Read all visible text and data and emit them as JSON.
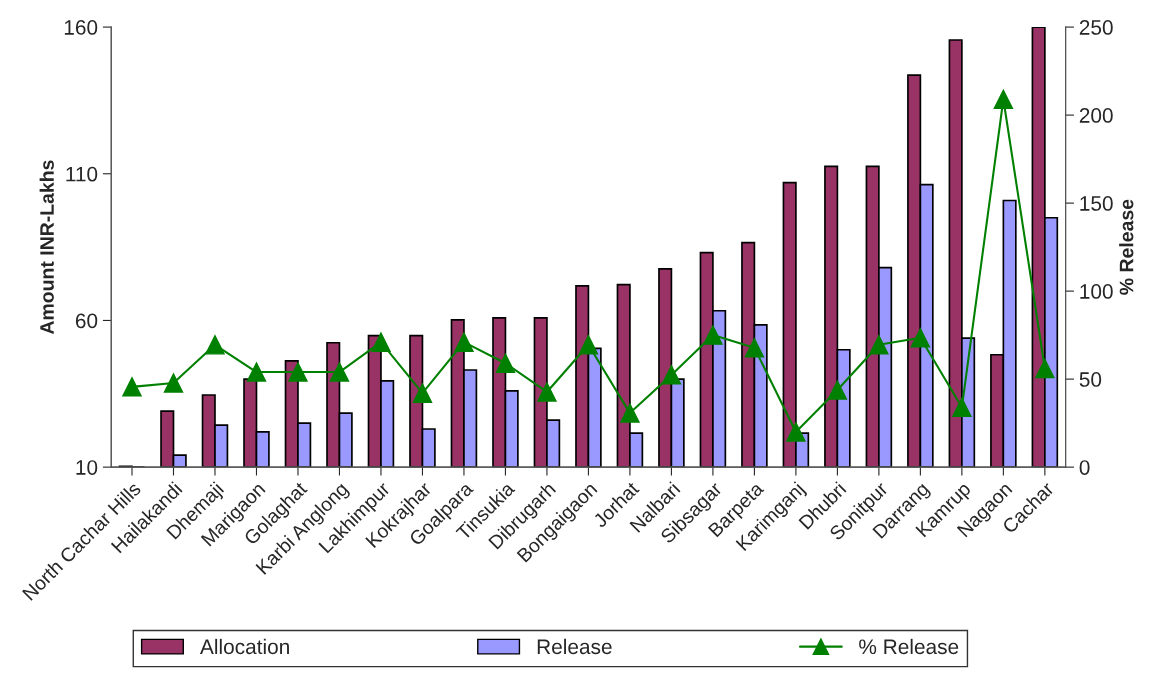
{
  "chart_data": {
    "type": "bar",
    "ylabel": "Amount INR-Lakhs",
    "y2label": "% Release",
    "categories": [
      "North Cachar Hills",
      "Hailakandi",
      "Dhemaji",
      "Marigaon",
      "Golaghat",
      "Karbi Anglong",
      "Lakhimpur",
      "Kokrajhar",
      "Goalpara",
      "Tinsukia",
      "Dibrugarh",
      "Bongaigaon",
      "Jorhat",
      "Nalbari",
      "Sibsagar",
      "Barpeta",
      "Karimganj",
      "Dhubri",
      "Sonitpur",
      "Darrang",
      "Kamrup",
      "Nagaon",
      "Cachar"
    ],
    "series": [
      {
        "name": "Allocation",
        "color": "#993366",
        "values": [
          10.3,
          29.1,
          34.6,
          40,
          46.2,
          52.4,
          54.8,
          54.8,
          60.2,
          60.9,
          60.9,
          71.8,
          72.2,
          77.6,
          83.1,
          86.5,
          107,
          112.5,
          112.5,
          143.6,
          155.6,
          48.3,
          160
        ]
      },
      {
        "name": "Release",
        "color": "#9999ff",
        "values": [
          null,
          14.1,
          24.3,
          22,
          25,
          28.4,
          39.4,
          23,
          43.1,
          36,
          26,
          50.5,
          21.6,
          40,
          63.3,
          58.5,
          21.6,
          50,
          78,
          106.3,
          54,
          100.9,
          95
        ]
      },
      {
        "name": "% Release",
        "type": "line",
        "axis": "y2",
        "color": "#008000",
        "marker": "triangle",
        "values": [
          45.6,
          47.8,
          69.5,
          54,
          54,
          54,
          71,
          42,
          71,
          59,
          42.7,
          69.5,
          30.7,
          52.4,
          75,
          67.8,
          20,
          43.8,
          69.5,
          73.5,
          34,
          209,
          56
        ]
      }
    ],
    "ylim": [
      10,
      160
    ],
    "yticks": [
      10,
      60,
      110,
      160
    ],
    "y2lim": [
      0,
      250
    ],
    "y2ticks": [
      0,
      50,
      100,
      150,
      200,
      250
    ],
    "grid": false,
    "legend": "bottom"
  }
}
